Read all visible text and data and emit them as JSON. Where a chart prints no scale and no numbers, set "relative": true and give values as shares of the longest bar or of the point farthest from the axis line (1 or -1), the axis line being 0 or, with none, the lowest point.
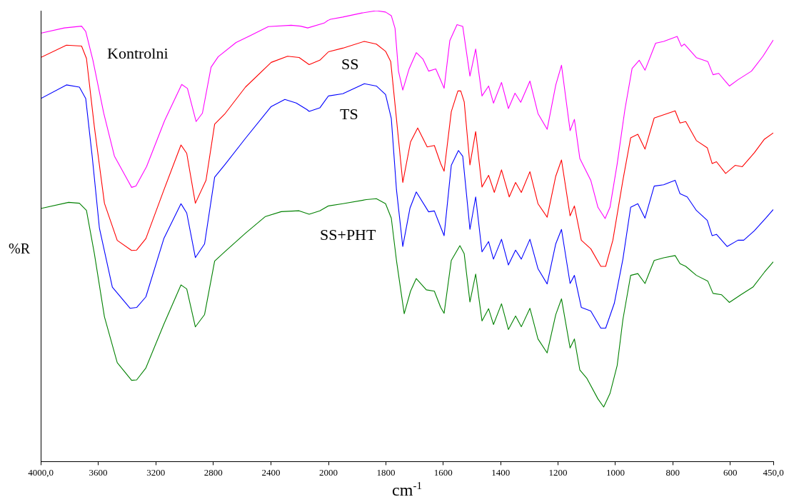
{
  "chart_data": [
    {
      "type": "line",
      "ylabel": "%R",
      "relative": true,
      "tick_labels": "x",
      "grid": false,
      "legend": false,
      "xlim": [
        4000,
        2000
      ],
      "xticks": [
        {
          "value": 4000,
          "label": "4000,0"
        },
        3600,
        3200,
        2800,
        2400
      ],
      "series": [
        {
          "name": "Kontrolni",
          "color": "#ff00ff",
          "x": [
            4000,
            3836,
            3716,
            3687,
            3637,
            3562,
            3488,
            3368,
            3338,
            3264,
            3139,
            3020,
            2980,
            2920,
            2876,
            2816,
            2766,
            2642,
            2542,
            2418,
            2259,
            2194,
            2144,
            2030,
            2000
          ],
          "values": [
            0.97,
            0.982,
            0.986,
            0.974,
            0.909,
            0.789,
            0.692,
            0.621,
            0.624,
            0.668,
            0.772,
            0.854,
            0.845,
            0.77,
            0.789,
            0.893,
            0.917,
            0.949,
            0.965,
            0.985,
            0.988,
            0.986,
            0.982,
            0.993,
            1.0
          ]
        },
        {
          "color": "#ff0000",
          "x": [
            4000,
            3821,
            3716,
            3682,
            3627,
            3557,
            3468,
            3368,
            3333,
            3269,
            3144,
            3025,
            2985,
            2925,
            2851,
            2791,
            2721,
            2577,
            2398,
            2284,
            2204,
            2134,
            2060,
            2000
          ],
          "values": [
            0.915,
            0.943,
            0.941,
            0.913,
            0.758,
            0.585,
            0.501,
            0.478,
            0.479,
            0.505,
            0.615,
            0.717,
            0.698,
            0.585,
            0.637,
            0.764,
            0.787,
            0.848,
            0.904,
            0.918,
            0.915,
            0.899,
            0.909,
            0.928
          ]
        },
        {
          "color": "#0000ff",
          "x": [
            4000,
            3821,
            3731,
            3687,
            3642,
            3592,
            3502,
            3378,
            3333,
            3269,
            3144,
            3025,
            2985,
            2925,
            2861,
            2791,
            2721,
            2577,
            2398,
            2303,
            2224,
            2149,
            2134,
            2060,
            2000
          ],
          "values": [
            0.822,
            0.853,
            0.848,
            0.822,
            0.691,
            0.529,
            0.395,
            0.347,
            0.349,
            0.373,
            0.505,
            0.584,
            0.563,
            0.462,
            0.493,
            0.644,
            0.672,
            0.732,
            0.804,
            0.82,
            0.812,
            0.797,
            0.793,
            0.801,
            0.828
          ]
        },
        {
          "color": "#008000",
          "x": [
            4000,
            3806,
            3731,
            3682,
            3627,
            3557,
            3468,
            3368,
            3333,
            3269,
            3144,
            3025,
            2985,
            2925,
            2861,
            2791,
            2721,
            2577,
            2438,
            2328,
            2204,
            2134,
            2060,
            2000
          ],
          "values": [
            0.573,
            0.587,
            0.585,
            0.569,
            0.471,
            0.328,
            0.224,
            0.184,
            0.185,
            0.212,
            0.311,
            0.4,
            0.391,
            0.305,
            0.333,
            0.454,
            0.475,
            0.517,
            0.555,
            0.566,
            0.568,
            0.56,
            0.568,
            0.579
          ]
        }
      ]
    },
    {
      "type": "line",
      "xlabel": "cm$^{-1}$",
      "relative": true,
      "tick_labels": "x",
      "grid": false,
      "legend": false,
      "xlim": [
        2000,
        450
      ],
      "xticks": [
        2000,
        1800,
        1600,
        1400,
        1200,
        1000,
        800,
        600,
        {
          "value": 450,
          "label": "450,0"
        }
      ],
      "series": [
        {
          "color": "#ff00ff",
          "x": [
            2000,
            1993,
            1950,
            1883,
            1833,
            1801,
            1781,
            1768,
            1756,
            1741,
            1719,
            1694,
            1671,
            1651,
            1626,
            1609,
            1597,
            1577,
            1552,
            1532,
            1507,
            1487,
            1465,
            1442,
            1425,
            1397,
            1373,
            1350,
            1330,
            1298,
            1270,
            1238,
            1208,
            1188,
            1158,
            1143,
            1124,
            1086,
            1061,
            1036,
            1019,
            994,
            967,
            942,
            917,
            897,
            860,
            832,
            785,
            770,
            760,
            718,
            678,
            660,
            640,
            603,
            573,
            526,
            486,
            450
          ],
          "values": [
            0.979,
            0.981,
            0.986,
            0.995,
            1.0,
            0.997,
            0.989,
            0.961,
            0.866,
            0.824,
            0.871,
            0.907,
            0.893,
            0.866,
            0.871,
            0.846,
            0.828,
            0.934,
            0.969,
            0.965,
            0.855,
            0.915,
            0.811,
            0.833,
            0.795,
            0.841,
            0.783,
            0.817,
            0.797,
            0.844,
            0.772,
            0.737,
            0.835,
            0.879,
            0.734,
            0.759,
            0.672,
            0.624,
            0.564,
            0.539,
            0.564,
            0.66,
            0.781,
            0.872,
            0.89,
            0.868,
            0.928,
            0.932,
            0.943,
            0.921,
            0.926,
            0.896,
            0.887,
            0.858,
            0.861,
            0.833,
            0.847,
            0.866,
            0.899,
            0.935
          ]
        },
        {
          "name": "SS",
          "color": "#ff0000",
          "x": [
            2000,
            1950,
            1875,
            1833,
            1801,
            1783,
            1768,
            1741,
            1714,
            1689,
            1656,
            1631,
            1609,
            1597,
            1572,
            1549,
            1539,
            1527,
            1507,
            1487,
            1465,
            1442,
            1422,
            1397,
            1370,
            1348,
            1328,
            1298,
            1270,
            1238,
            1208,
            1188,
            1158,
            1143,
            1119,
            1086,
            1051,
            1034,
            1009,
            974,
            947,
            922,
            897,
            865,
            832,
            792,
            775,
            755,
            718,
            680,
            663,
            648,
            616,
            583,
            558,
            516,
            481,
            450
          ],
          "values": [
            0.909,
            0.917,
            0.932,
            0.926,
            0.91,
            0.887,
            0.792,
            0.619,
            0.709,
            0.74,
            0.698,
            0.701,
            0.661,
            0.644,
            0.776,
            0.822,
            0.822,
            0.798,
            0.658,
            0.732,
            0.609,
            0.635,
            0.597,
            0.647,
            0.587,
            0.619,
            0.597,
            0.643,
            0.572,
            0.542,
            0.633,
            0.669,
            0.545,
            0.567,
            0.491,
            0.472,
            0.433,
            0.433,
            0.491,
            0.624,
            0.718,
            0.726,
            0.693,
            0.762,
            0.769,
            0.778,
            0.751,
            0.754,
            0.712,
            0.696,
            0.661,
            0.665,
            0.639,
            0.657,
            0.654,
            0.685,
            0.715,
            0.729
          ]
        },
        {
          "name": "TS",
          "color": "#0000ff",
          "x": [
            2000,
            1950,
            1875,
            1833,
            1801,
            1781,
            1763,
            1741,
            1716,
            1694,
            1651,
            1631,
            1609,
            1597,
            1572,
            1547,
            1532,
            1507,
            1487,
            1465,
            1442,
            1425,
            1397,
            1373,
            1348,
            1328,
            1298,
            1270,
            1238,
            1208,
            1188,
            1158,
            1143,
            1119,
            1086,
            1051,
            1034,
            1004,
            974,
            947,
            922,
            897,
            865,
            832,
            792,
            775,
            750,
            718,
            680,
            663,
            648,
            611,
            573,
            553,
            516,
            476,
            450
          ],
          "values": [
            0.811,
            0.816,
            0.838,
            0.833,
            0.814,
            0.761,
            0.603,
            0.477,
            0.562,
            0.598,
            0.554,
            0.556,
            0.52,
            0.501,
            0.657,
            0.69,
            0.677,
            0.515,
            0.587,
            0.465,
            0.488,
            0.449,
            0.493,
            0.436,
            0.469,
            0.449,
            0.493,
            0.428,
            0.394,
            0.483,
            0.515,
            0.395,
            0.413,
            0.342,
            0.334,
            0.296,
            0.296,
            0.351,
            0.449,
            0.564,
            0.572,
            0.54,
            0.611,
            0.614,
            0.624,
            0.594,
            0.587,
            0.557,
            0.535,
            0.501,
            0.504,
            0.477,
            0.491,
            0.491,
            0.512,
            0.54,
            0.559
          ]
        },
        {
          "name": "SS+PHT",
          "color": "#008000",
          "x": [
            2000,
            1950,
            1868,
            1833,
            1801,
            1781,
            1763,
            1736,
            1714,
            1694,
            1659,
            1631,
            1609,
            1597,
            1572,
            1542,
            1527,
            1507,
            1487,
            1465,
            1442,
            1425,
            1397,
            1373,
            1348,
            1328,
            1298,
            1270,
            1238,
            1208,
            1188,
            1158,
            1143,
            1124,
            1099,
            1061,
            1041,
            1019,
            994,
            974,
            947,
            922,
            897,
            865,
            832,
            792,
            775,
            755,
            718,
            678,
            660,
            630,
            603,
            563,
            521,
            481,
            450
          ],
          "values": [
            0.567,
            0.572,
            0.581,
            0.583,
            0.572,
            0.54,
            0.446,
            0.328,
            0.378,
            0.406,
            0.381,
            0.378,
            0.342,
            0.329,
            0.446,
            0.479,
            0.461,
            0.354,
            0.416,
            0.312,
            0.339,
            0.304,
            0.35,
            0.293,
            0.323,
            0.299,
            0.34,
            0.272,
            0.241,
            0.326,
            0.361,
            0.252,
            0.272,
            0.203,
            0.184,
            0.139,
            0.121,
            0.151,
            0.213,
            0.315,
            0.413,
            0.417,
            0.395,
            0.446,
            0.452,
            0.457,
            0.439,
            0.433,
            0.413,
            0.4,
            0.373,
            0.37,
            0.353,
            0.37,
            0.387,
            0.42,
            0.443
          ]
        }
      ]
    }
  ]
}
